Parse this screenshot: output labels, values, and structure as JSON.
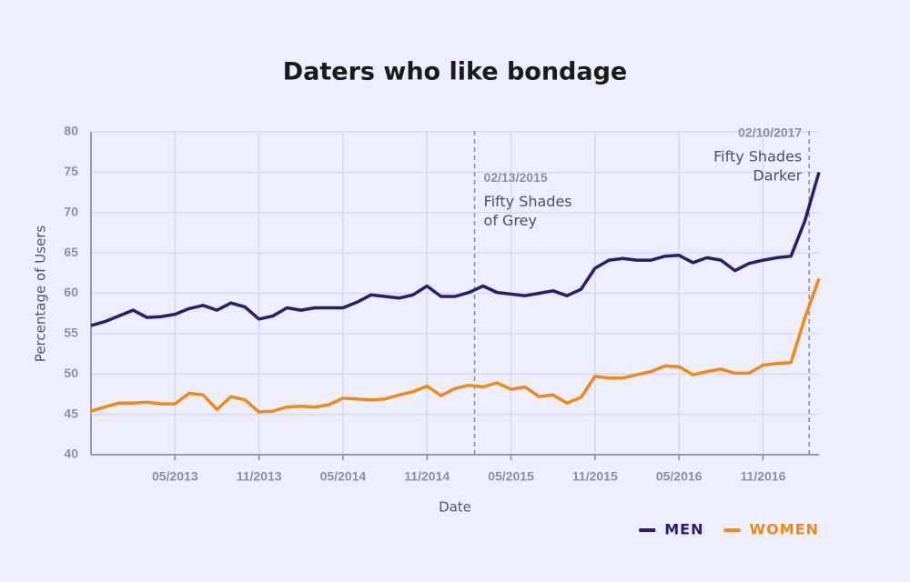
{
  "chart_data": {
    "type": "line",
    "title": "Daters who like bondage",
    "x_label": "Date",
    "y_label": "Percentage of Users",
    "x": [
      "11/2012",
      "12/2012",
      "01/2013",
      "02/2013",
      "03/2013",
      "04/2013",
      "05/2013",
      "06/2013",
      "07/2013",
      "08/2013",
      "09/2013",
      "10/2013",
      "11/2013",
      "12/2013",
      "01/2014",
      "02/2014",
      "03/2014",
      "04/2014",
      "05/2014",
      "06/2014",
      "07/2014",
      "08/2014",
      "09/2014",
      "10/2014",
      "11/2014",
      "12/2014",
      "01/2015",
      "02/2015",
      "03/2015",
      "04/2015",
      "05/2015",
      "06/2015",
      "07/2015",
      "08/2015",
      "09/2015",
      "10/2015",
      "11/2015",
      "12/2015",
      "01/2016",
      "02/2016",
      "03/2016",
      "04/2016",
      "05/2016",
      "06/2016",
      "07/2016",
      "08/2016",
      "09/2016",
      "10/2016",
      "11/2016",
      "12/2016",
      "01/2017",
      "02/2017",
      "03/2017"
    ],
    "series": [
      {
        "name": "MEN",
        "color": "#2d1b6b",
        "values": [
          56.0,
          56.5,
          57.2,
          57.9,
          57.0,
          57.1,
          57.4,
          58.1,
          58.5,
          57.9,
          58.8,
          58.3,
          56.8,
          57.2,
          58.2,
          57.9,
          58.2,
          58.2,
          58.2,
          58.9,
          59.8,
          59.6,
          59.4,
          59.8,
          60.9,
          59.6,
          59.6,
          60.1,
          60.9,
          60.1,
          59.9,
          59.7,
          60.0,
          60.3,
          59.7,
          60.5,
          63.1,
          64.1,
          64.3,
          64.1,
          64.1,
          64.6,
          64.7,
          63.8,
          64.4,
          64.1,
          62.8,
          63.7,
          64.1,
          64.4,
          64.6,
          69.0,
          75.0
        ]
      },
      {
        "name": "WOMEN",
        "color": "#f0891c",
        "values": [
          45.4,
          45.9,
          46.4,
          46.4,
          46.5,
          46.3,
          46.3,
          47.6,
          47.4,
          45.6,
          47.2,
          46.8,
          45.3,
          45.4,
          45.9,
          46.0,
          45.9,
          46.2,
          47.0,
          46.9,
          46.8,
          46.9,
          47.4,
          47.8,
          48.5,
          47.3,
          48.2,
          48.6,
          48.4,
          48.9,
          48.1,
          48.4,
          47.2,
          47.4,
          46.4,
          47.1,
          49.7,
          49.5,
          49.5,
          49.9,
          50.3,
          51.0,
          50.9,
          49.9,
          50.3,
          50.6,
          50.1,
          50.1,
          51.1,
          51.3,
          51.4,
          57.0,
          61.8
        ]
      }
    ],
    "xlim": [
      "11/2012",
      "03/2017"
    ],
    "xticks": [
      "05/2013",
      "11/2013",
      "05/2014",
      "11/2014",
      "05/2015",
      "11/2015",
      "05/2016",
      "11/2016"
    ],
    "ylim": [
      40,
      80
    ],
    "yticks": [
      40,
      45,
      50,
      55,
      60,
      65,
      70,
      75,
      80
    ],
    "grid": true,
    "legend": "bottom-right",
    "annotations": [
      {
        "date": "02/13/2015",
        "text": [
          "Fifty Shades",
          "of Grey"
        ],
        "align": "left"
      },
      {
        "date": "02/10/2017",
        "text": [
          "Fifty Shades",
          "Darker"
        ],
        "align": "right"
      }
    ]
  }
}
